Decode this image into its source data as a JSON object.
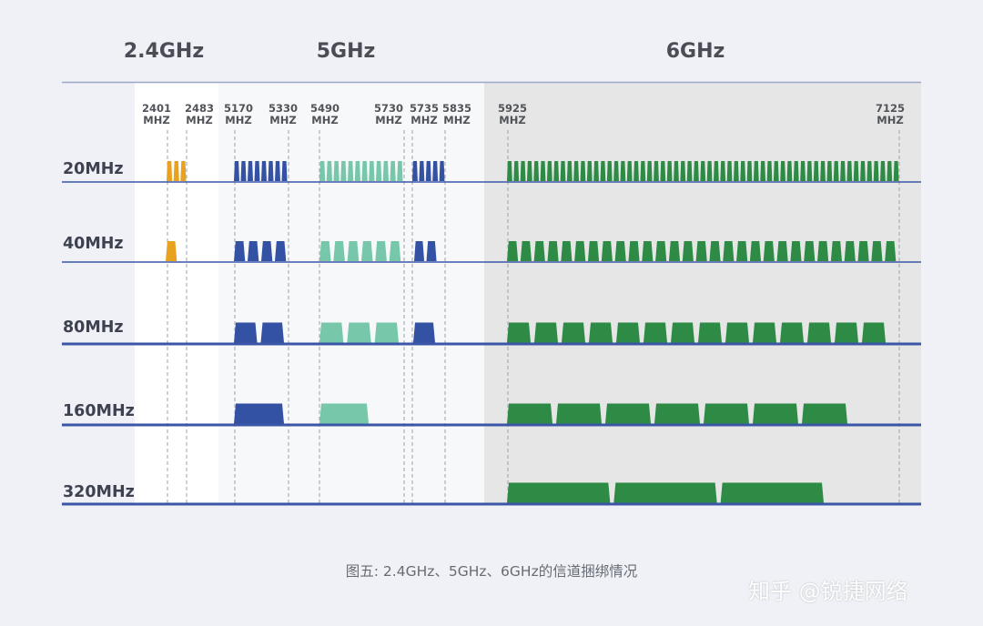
{
  "bands": [
    {
      "key": "b24",
      "label": "2.4GHz"
    },
    {
      "key": "b5",
      "label": "5GHz"
    },
    {
      "key": "b6",
      "label": "6GHz"
    }
  ],
  "frequencies": [
    {
      "key": "f2401",
      "value": "2401",
      "unit": "MHZ"
    },
    {
      "key": "f2483",
      "value": "2483",
      "unit": "MHZ"
    },
    {
      "key": "f5170",
      "value": "5170",
      "unit": "MHZ"
    },
    {
      "key": "f5330",
      "value": "5330",
      "unit": "MHZ"
    },
    {
      "key": "f5490",
      "value": "5490",
      "unit": "MHZ"
    },
    {
      "key": "f5730",
      "value": "5730",
      "unit": "MHZ"
    },
    {
      "key": "f5735",
      "value": "5735",
      "unit": "MHZ"
    },
    {
      "key": "f5835",
      "value": "5835",
      "unit": "MHZ"
    },
    {
      "key": "f5925",
      "value": "5925",
      "unit": "MHZ"
    },
    {
      "key": "f7125",
      "value": "7125",
      "unit": "MHZ"
    }
  ],
  "rows": [
    {
      "key": "w20",
      "label": "20MHz"
    },
    {
      "key": "w40",
      "label": "40MHz"
    },
    {
      "key": "w80",
      "label": "80MHz"
    },
    {
      "key": "w160",
      "label": "160MHz"
    },
    {
      "key": "w320",
      "label": "320MHz"
    }
  ],
  "channel_counts": {
    "w20": {
      "g24": 3,
      "u1": 8,
      "u2": 12,
      "u3": 5,
      "g6": 59
    },
    "w40": {
      "g24": 1,
      "u1": 4,
      "u2": 6,
      "u3": 2,
      "g6": 29
    },
    "w80": {
      "g24": 0,
      "u1": 2,
      "u2": 3,
      "u3": 1,
      "g6": 14
    },
    "w160": {
      "g24": 0,
      "u1": 1,
      "u2": 1,
      "u3": 0,
      "g6": 7
    },
    "w320": {
      "g24": 0,
      "u1": 0,
      "u2": 0,
      "u3": 0,
      "g6": 3
    }
  },
  "colors": {
    "g24": "#e9a21f",
    "u1": "#3452a4",
    "u2": "#77c8ab",
    "u3": "#3452a4",
    "g6": "#2e8b46",
    "line": "#3b56a6",
    "dash": "#9da1aa"
  },
  "caption": "图五: 2.4GHz、5GHz、6GHz的信道捆绑情况",
  "watermark": "知乎 @锐捷网络"
}
